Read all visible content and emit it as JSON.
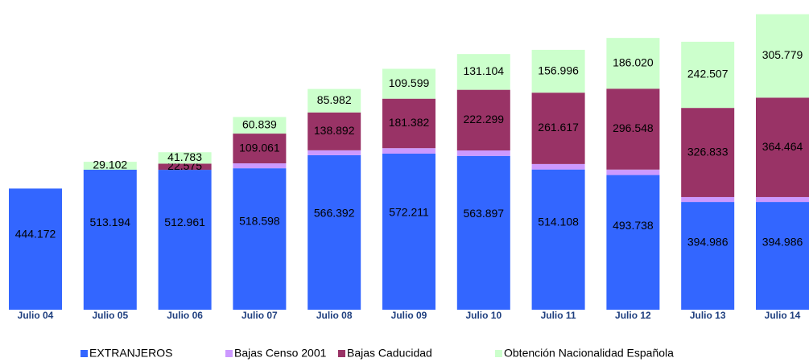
{
  "chart_data": {
    "type": "stacked_bar",
    "categories": [
      "Julio 04",
      "Julio 05",
      "Julio 06",
      "Julio 07",
      "Julio 08",
      "Julio 09",
      "Julio 10",
      "Julio 11",
      "Julio 12",
      "Julio 13",
      "Julio 14"
    ],
    "ylim": [
      0,
      1100000
    ],
    "series": [
      {
        "name": "EXTRANJEROS",
        "color": "#3366ff",
        "values": [
          444172,
          513194,
          512961,
          518598,
          566392,
          572211,
          563897,
          514108,
          493738,
          394986,
          394986
        ],
        "value_labels": [
          "444.172",
          "513.194",
          "512.961",
          "518.598",
          "566.392",
          "572.211",
          "563.897",
          "514.108",
          "493.738",
          "394.986",
          "394.986"
        ]
      },
      {
        "name": "Bajas Censo 2001",
        "color": "#cc99ff",
        "values": [
          0,
          0,
          0,
          18000,
          18000,
          20000,
          20000,
          20000,
          20000,
          18000,
          18000
        ]
      },
      {
        "name": "Bajas Caducidad",
        "color": "#993366",
        "values": [
          null,
          null,
          22575,
          109061,
          138892,
          181382,
          222299,
          261617,
          296548,
          326833,
          364464
        ],
        "value_labels": [
          null,
          null,
          "22.575",
          "109.061",
          "138.892",
          "181.382",
          "222.299",
          "261.617",
          "296.548",
          "326.833",
          "364.464"
        ]
      },
      {
        "name": "Obtención Nacionalidad Española",
        "color": "#ccffcc",
        "values": [
          null,
          29102,
          41783,
          60839,
          85982,
          109599,
          131104,
          156996,
          186020,
          242507,
          305779
        ],
        "value_labels": [
          null,
          "29.102",
          "41.783",
          "60.839",
          "85.982",
          "109.599",
          "131.104",
          "156.996",
          "186.020",
          "242.507",
          "305.779"
        ]
      }
    ]
  }
}
